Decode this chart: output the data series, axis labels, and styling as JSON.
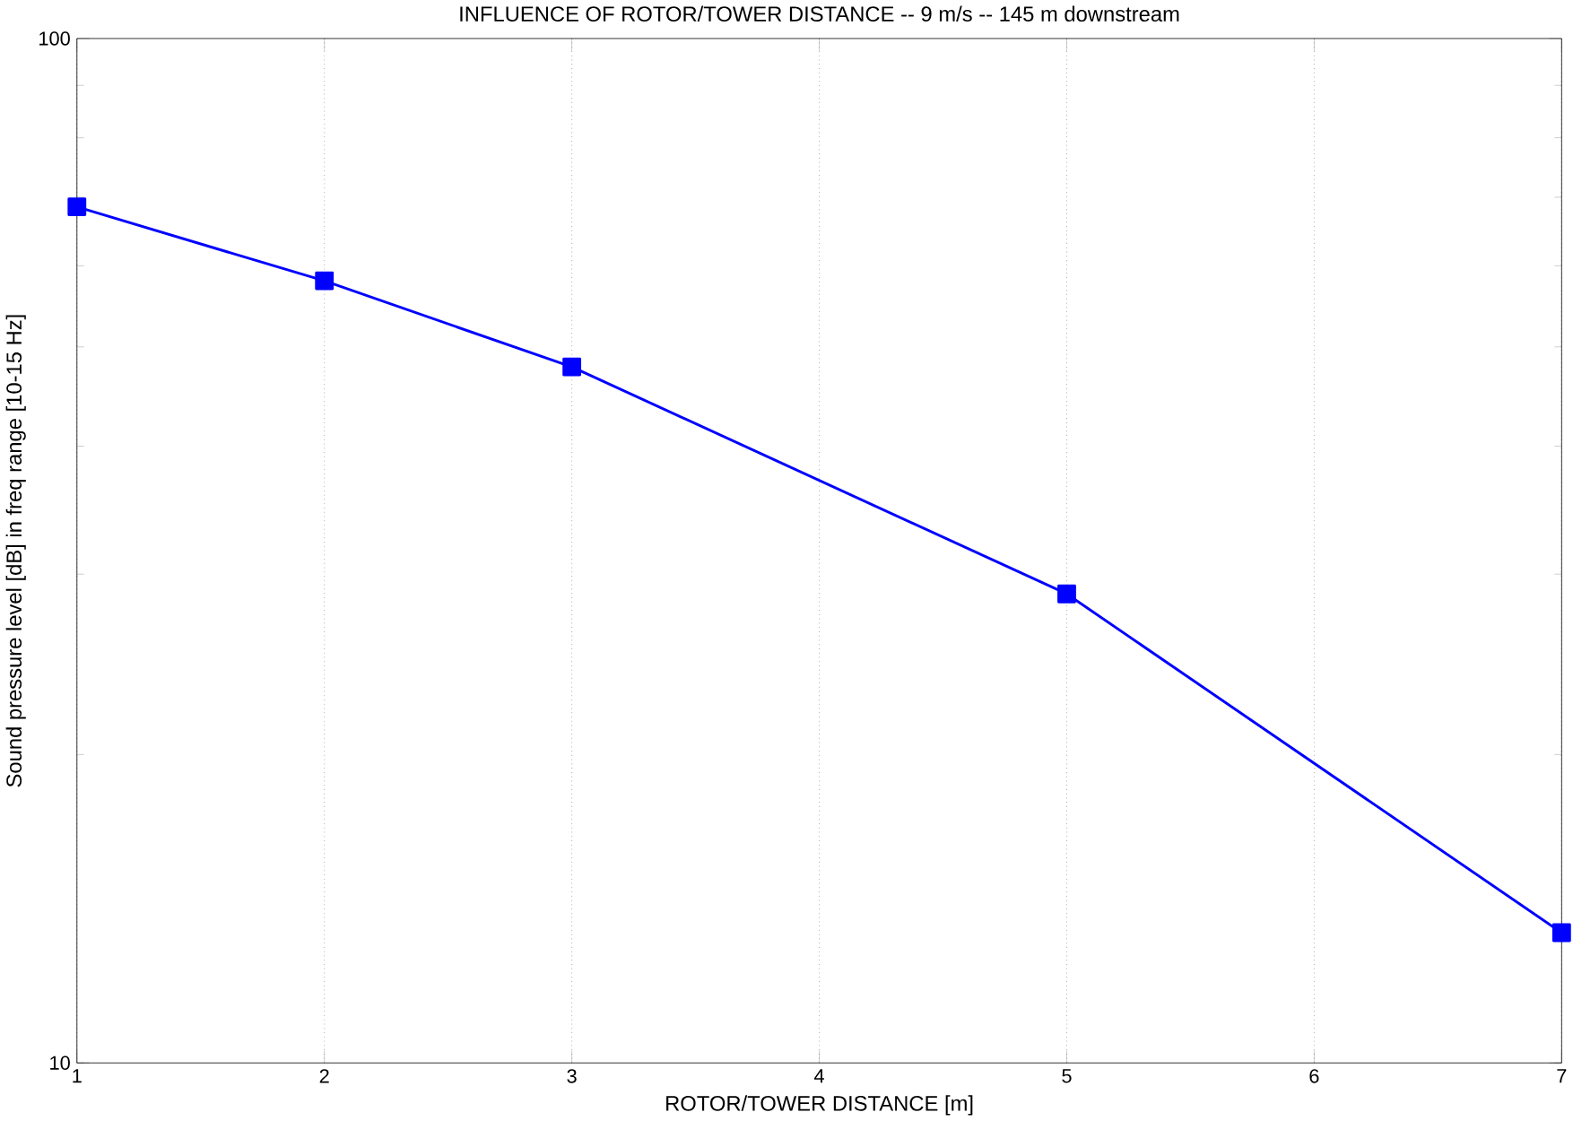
{
  "chart_data": {
    "type": "line",
    "title": "INFLUENCE OF ROTOR/TOWER DISTANCE -- 9 m/s -- 145 m downstream",
    "xlabel": "ROTOR/TOWER DISTANCE [m]",
    "ylabel": "Sound pressure level [dB] in freq range [10-15 Hz]",
    "x": [
      1,
      2,
      3,
      5,
      7
    ],
    "series": [
      {
        "color": "#0000ff",
        "values": [
          68.5,
          58.0,
          47.8,
          28.7,
          13.4
        ]
      }
    ],
    "xlim": [
      1,
      7
    ],
    "ylim": [
      10,
      100
    ],
    "xticks": [
      1,
      2,
      3,
      4,
      5,
      6,
      7
    ],
    "yticks": [
      10,
      100
    ],
    "log": "y",
    "grid": "x",
    "marker": "square",
    "line_style": "solid"
  }
}
